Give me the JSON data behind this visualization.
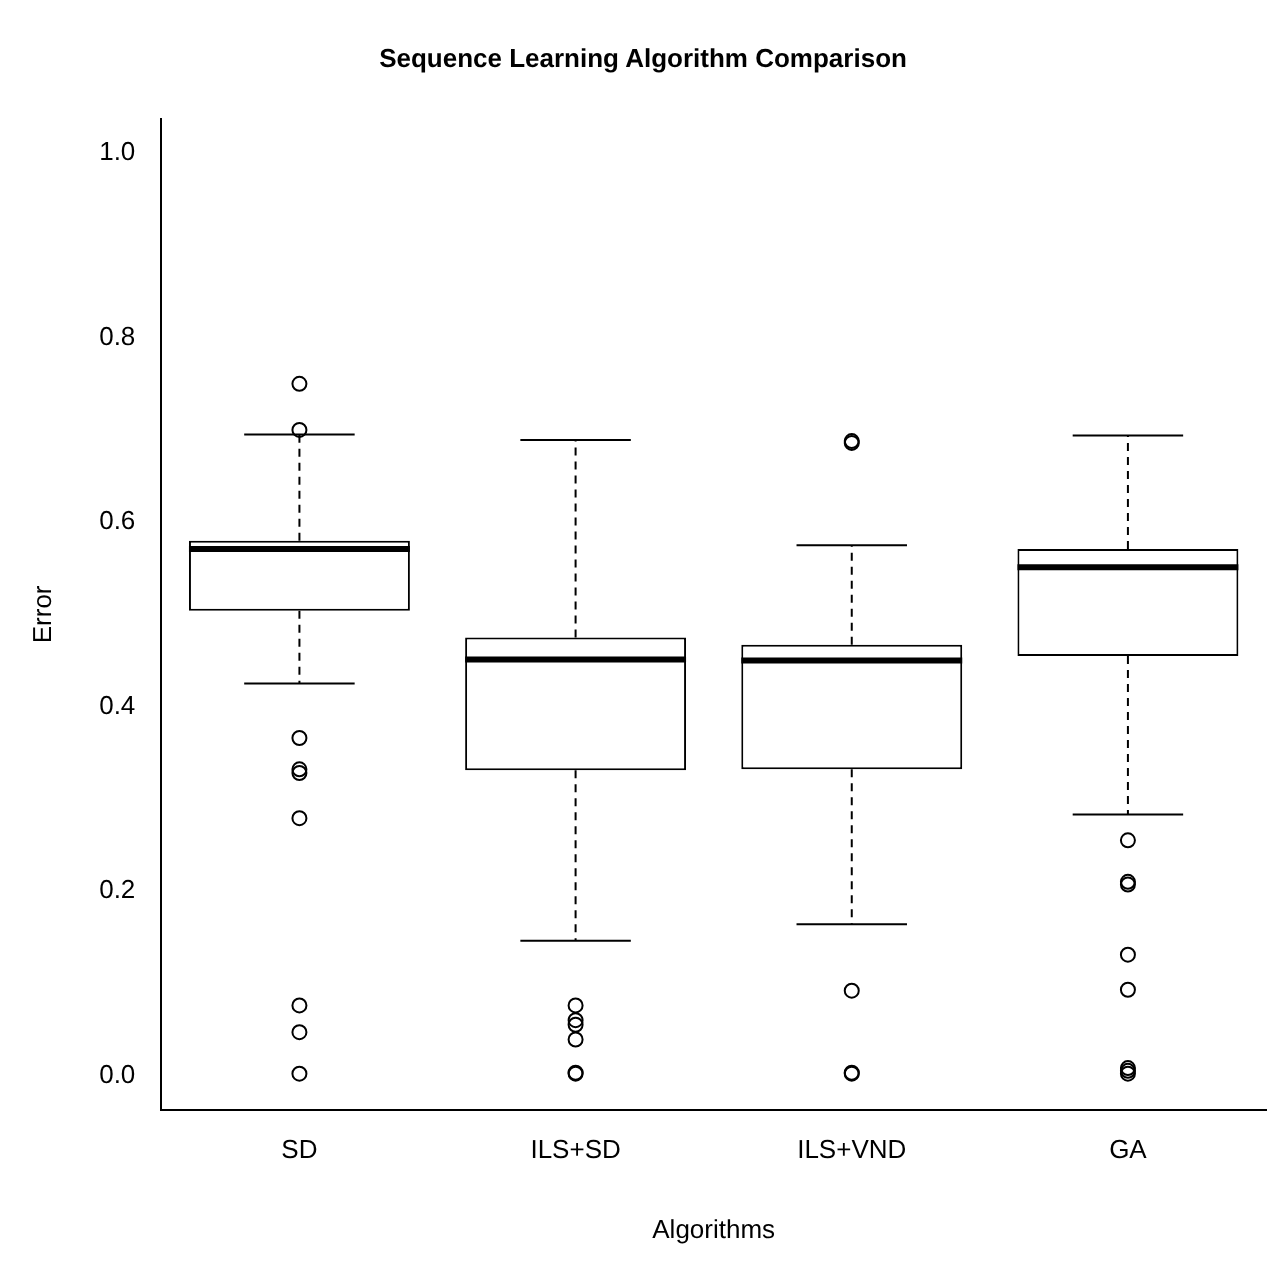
{
  "chart_data": {
    "type": "box",
    "title": "Sequence Learning Algorithm Comparison",
    "xlabel": "Algorithms",
    "ylabel": "Error",
    "categories": [
      "SD",
      "ILS+SD",
      "ILS+VND",
      "GA"
    ],
    "boxes": [
      {
        "low": 0.425,
        "q1": 0.504,
        "median": 0.571,
        "q3": 0.58,
        "high": 0.695,
        "outliers": [
          0.75,
          0.7,
          0.366,
          0.332,
          0.328,
          0.279,
          0.076,
          0.047,
          0.002
        ]
      },
      {
        "low": 0.146,
        "q1": 0.331,
        "median": 0.451,
        "q3": 0.475,
        "high": 0.689,
        "outliers": [
          0.076,
          0.06,
          0.055,
          0.039,
          0.003,
          0.002
        ]
      },
      {
        "low": 0.164,
        "q1": 0.332,
        "median": 0.45,
        "q3": 0.467,
        "high": 0.575,
        "outliers": [
          0.688,
          0.686,
          0.092,
          0.003,
          0.002
        ]
      },
      {
        "low": 0.283,
        "q1": 0.455,
        "median": 0.551,
        "q3": 0.571,
        "high": 0.694,
        "outliers": [
          0.255,
          0.21,
          0.207,
          0.131,
          0.093,
          0.008,
          0.005,
          0.002
        ]
      }
    ],
    "ylim": [
      -0.037,
      1.037
    ],
    "yticks": [
      {
        "value": 0,
        "label": "0.0"
      },
      {
        "value": 0.2,
        "label": "0.2"
      },
      {
        "value": 0.4,
        "label": "0.4"
      },
      {
        "value": 0.6,
        "label": "0.6"
      },
      {
        "value": 0.8,
        "label": "0.8"
      },
      {
        "value": 1,
        "label": "1.0"
      }
    ],
    "grid": false,
    "legend": false
  }
}
